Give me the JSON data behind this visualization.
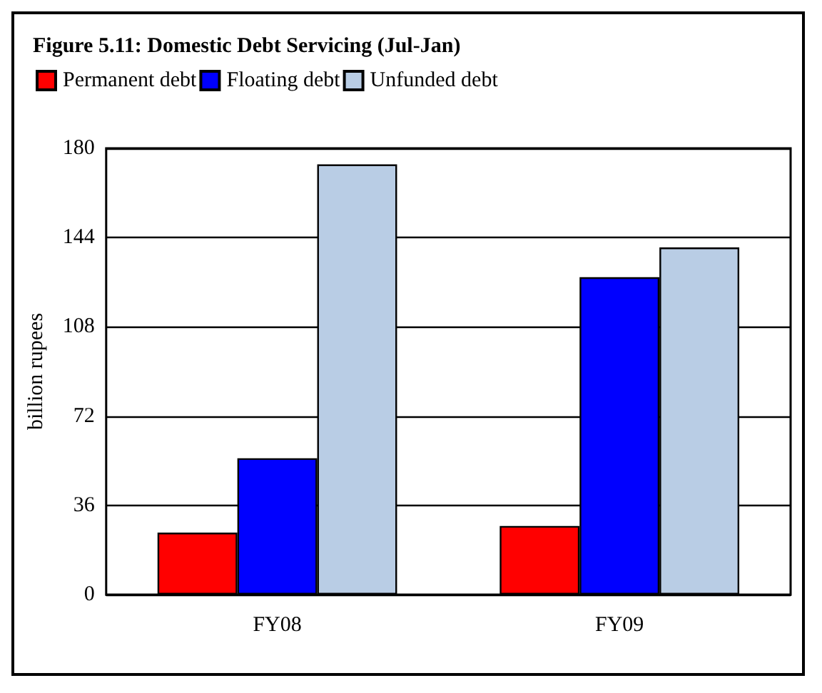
{
  "chart_data": {
    "type": "bar",
    "title": "Figure 5.11: Domestic Debt Servicing (Jul-Jan)",
    "ylabel": "billion rupees",
    "categories": [
      "FY08",
      "FY09"
    ],
    "series": [
      {
        "name": "Permanent debt",
        "color": "#ff0000",
        "values": [
          25,
          27.7
        ]
      },
      {
        "name": "Floating debt",
        "color": "#0000ff",
        "values": [
          55,
          128
        ]
      },
      {
        "name": "Unfunded debt",
        "color": "#b9cde5",
        "values": [
          173.5,
          140
        ]
      }
    ],
    "ylim": [
      0,
      180
    ],
    "yticks": [
      0,
      36,
      72,
      108,
      144,
      180
    ],
    "grid": "y",
    "legend": "top left"
  }
}
